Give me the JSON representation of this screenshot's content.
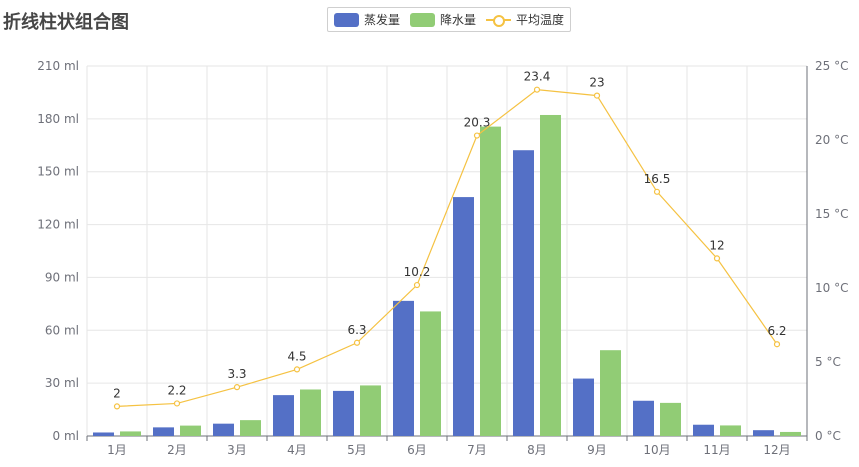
{
  "title": "折线柱状组合图",
  "colors": {
    "evap": "#5470c6",
    "rain": "#91cc75",
    "temp": "#f5c242",
    "grid": "#e6e6e6",
    "axis": "#6e7079"
  },
  "chart_data": {
    "type": "bar+line",
    "title": "折线柱状组合图",
    "categories": [
      "1月",
      "2月",
      "3月",
      "4月",
      "5月",
      "6月",
      "7月",
      "8月",
      "9月",
      "10月",
      "11月",
      "12月"
    ],
    "legend": {
      "position": "top-center",
      "entries": [
        "蒸发量",
        "降水量",
        "平均温度"
      ]
    },
    "series": [
      {
        "name": "蒸发量",
        "type": "bar",
        "axis": "left",
        "values": [
          2.0,
          4.9,
          7.0,
          23.2,
          25.6,
          76.7,
          135.6,
          162.2,
          32.6,
          20.0,
          6.4,
          3.3
        ]
      },
      {
        "name": "降水量",
        "type": "bar",
        "axis": "left",
        "values": [
          2.6,
          5.9,
          9.0,
          26.4,
          28.7,
          70.7,
          175.6,
          182.2,
          48.7,
          18.8,
          6.0,
          2.3
        ]
      },
      {
        "name": "平均温度",
        "type": "line",
        "axis": "right",
        "values": [
          2.0,
          2.2,
          3.3,
          4.5,
          6.3,
          10.2,
          20.3,
          23.4,
          23.0,
          16.5,
          12.0,
          6.2
        ],
        "labels": [
          "2",
          "2.2",
          "3.3",
          "4.5",
          "6.3",
          "10.2",
          "20.3",
          "23.4",
          "23",
          "16.5",
          "12",
          "6.2"
        ]
      }
    ],
    "y_left": {
      "min": 0,
      "max": 210,
      "ticks": [
        "0 ml",
        "30 ml",
        "60 ml",
        "90 ml",
        "120 ml",
        "150 ml",
        "180 ml",
        "210 ml"
      ]
    },
    "y_right": {
      "min": 0,
      "max": 25,
      "ticks": [
        "0 °C",
        "5 °C",
        "10 °C",
        "15 °C",
        "20 °C",
        "25 °C"
      ]
    },
    "grid": true
  }
}
